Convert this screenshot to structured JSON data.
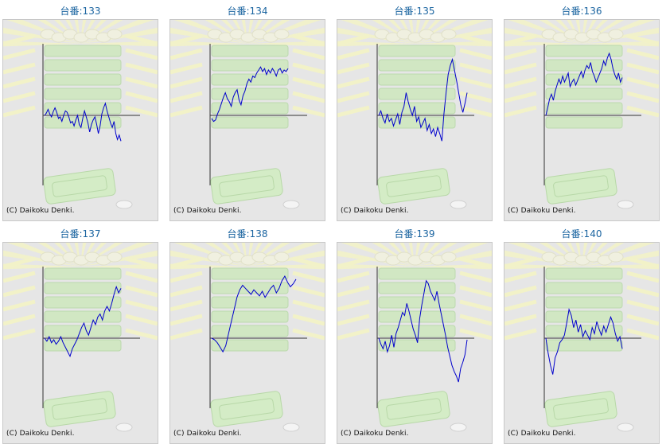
{
  "colors": {
    "title": "#1a64a0",
    "line": "#0000cc",
    "panel_bg": "#e6e6e6",
    "axis": "#333333"
  },
  "copyright": "(C) Daikoku Denki.",
  "machines": [
    {
      "label": "台番:133",
      "chart_data": {
        "type": "line",
        "values": [
          0,
          3,
          8,
          2,
          -2,
          5,
          10,
          4,
          -4,
          -2,
          -8,
          0,
          6,
          4,
          -2,
          -10,
          -8,
          -14,
          -6,
          0,
          -12,
          -16,
          -4,
          6,
          -2,
          -10,
          -22,
          -12,
          -6,
          -2,
          -12,
          -24,
          -14,
          2,
          10,
          16,
          6,
          -2,
          -10,
          -16,
          -8,
          -24,
          -32,
          -26,
          -34
        ]
      }
    },
    {
      "label": "台番:134",
      "chart_data": {
        "type": "line",
        "values": [
          -4,
          -8,
          -6,
          2,
          8,
          16,
          24,
          30,
          22,
          18,
          12,
          24,
          30,
          34,
          20,
          14,
          26,
          32,
          42,
          48,
          44,
          52,
          50,
          56,
          60,
          64,
          58,
          62,
          54,
          60,
          56,
          62,
          58,
          52,
          60,
          62,
          56,
          60,
          58,
          62
        ]
      }
    },
    {
      "label": "台番:135",
      "chart_data": {
        "type": "line",
        "values": [
          0,
          6,
          -4,
          -10,
          2,
          -8,
          -4,
          -14,
          -6,
          2,
          -12,
          4,
          12,
          30,
          18,
          8,
          0,
          12,
          -8,
          -2,
          -16,
          -10,
          -4,
          -20,
          -12,
          -24,
          -18,
          -28,
          -16,
          -24,
          -34,
          2,
          30,
          54,
          66,
          74,
          60,
          46,
          30,
          14,
          4,
          16,
          30
        ]
      }
    },
    {
      "label": "台番:136",
      "chart_data": {
        "type": "line",
        "values": [
          0,
          10,
          22,
          28,
          20,
          32,
          40,
          48,
          42,
          52,
          44,
          50,
          56,
          38,
          44,
          48,
          40,
          46,
          52,
          58,
          50,
          60,
          66,
          62,
          70,
          58,
          52,
          44,
          50,
          56,
          62,
          72,
          66,
          76,
          82,
          74,
          62,
          54,
          48,
          56,
          44,
          50
        ]
      }
    },
    {
      "label": "台番:137",
      "chart_data": {
        "type": "line",
        "values": [
          0,
          -4,
          2,
          -6,
          -2,
          -8,
          -4,
          2,
          -6,
          -12,
          -18,
          -24,
          -14,
          -8,
          -2,
          6,
          14,
          20,
          10,
          4,
          14,
          24,
          18,
          28,
          32,
          24,
          36,
          42,
          36,
          46,
          58,
          68,
          60,
          66
        ]
      }
    },
    {
      "label": "台番:138",
      "chart_data": {
        "type": "line",
        "values": [
          0,
          -2,
          -6,
          -12,
          -18,
          -10,
          6,
          22,
          38,
          54,
          64,
          70,
          66,
          62,
          58,
          64,
          60,
          56,
          62,
          54,
          60,
          66,
          70,
          60,
          66,
          76,
          82,
          74,
          68,
          72,
          78
        ]
      }
    },
    {
      "label": "台番:139",
      "chart_data": {
        "type": "line",
        "values": [
          0,
          -8,
          -14,
          -4,
          -18,
          -10,
          4,
          -12,
          6,
          14,
          24,
          34,
          30,
          46,
          36,
          24,
          12,
          4,
          -6,
          26,
          44,
          60,
          76,
          72,
          62,
          56,
          50,
          62,
          46,
          32,
          18,
          4,
          -12,
          -24,
          -36,
          -44,
          -50,
          -58,
          -40,
          -32,
          -22,
          -2
        ]
      }
    },
    {
      "label": "台番:140",
      "chart_data": {
        "type": "line",
        "values": [
          0,
          -20,
          -36,
          -48,
          -26,
          -18,
          -6,
          -2,
          4,
          20,
          38,
          30,
          14,
          24,
          8,
          18,
          2,
          10,
          4,
          -2,
          14,
          6,
          22,
          12,
          4,
          16,
          8,
          18,
          28,
          20,
          6,
          -4,
          2,
          -14
        ]
      }
    }
  ]
}
